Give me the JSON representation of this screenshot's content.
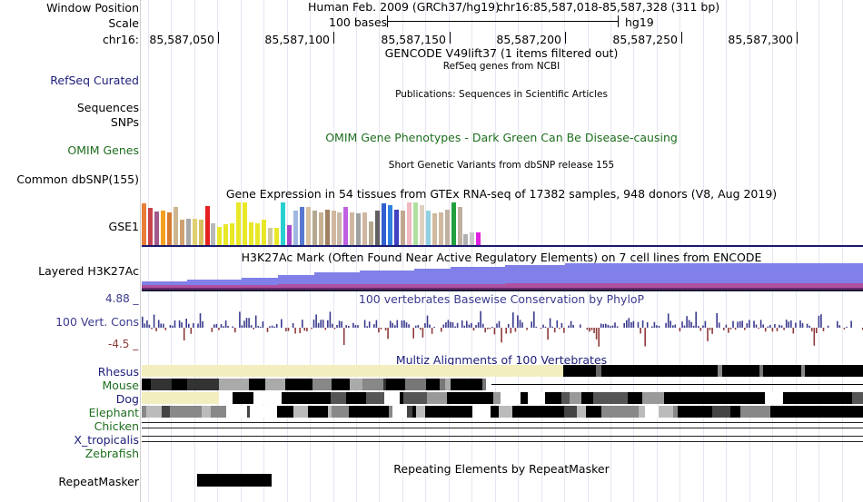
{
  "header": {
    "window_position_label": "Window Position",
    "assembly": "Human Feb. 2009 (GRCh37/hg19)",
    "position": "chr16:85,587,018-85,587,328 (311 bp)",
    "scale_label": "Scale",
    "scale_bar_text": "100 bases",
    "scale_assembly": "hg19",
    "chrom_label": "chr16:",
    "ruler_ticks": [
      "85,587,050",
      "85,587,100",
      "85,587,150",
      "85,587,200",
      "85,587,250",
      "85,587,300"
    ]
  },
  "tracks": {
    "gencode": {
      "title": "GENCODE V49lift37 (1 items filtered out)"
    },
    "refseq": {
      "label": "RefSeq Curated",
      "title": "RefSeq genes from NCBI",
      "color": "#1c1c7a"
    },
    "sequences": {
      "label": "Sequences",
      "title": "Publications: Sequences in Scientific Articles"
    },
    "omim": {
      "label_snps": "SNPs",
      "label": "OMIM Genes",
      "title": "OMIM Gene Phenotypes - Dark Green Can Be Disease-causing",
      "color": "#1e6e1e"
    },
    "dbsnp": {
      "label": "Common dbSNP(155)",
      "title": "Short Genetic Variants from dbSNP release 155"
    },
    "gtex": {
      "label": "GSE1",
      "title": "Gene Expression in 54 tissues from GTEx RNA-seq of 17382 samples, 948 donors (V8, Aug 2019)",
      "bar_colors": [
        "#e87e3a",
        "#c8434c",
        "#a05a8c",
        "#f4a020",
        "#d67a2e",
        "#ccb590",
        "#cfa070",
        "#a8a8a8",
        "#e0d070",
        "#d6c060",
        "#e62020",
        "#b8b8b8",
        "#e8e828",
        "#e8e828",
        "#e8e828",
        "#e8e828",
        "#e8e828",
        "#e8e828",
        "#e8e828",
        "#e8e828",
        "#d0c8a0",
        "#e8e828",
        "#28d0d0",
        "#a848c8",
        "#a0b8e0",
        "#5878d0",
        "#d8c0a0",
        "#b4a890",
        "#c8b090",
        "#a08060",
        "#d0b8a0",
        "#c8b8a8",
        "#c060e0",
        "#d0b8a0",
        "#a0a0a0",
        "#d0b8a0",
        "#b4a890",
        "#606060",
        "#3060d0",
        "#3080e0",
        "#4040c0",
        "#c0a890",
        "#f0b8c0",
        "#b0e0a0",
        "#e0d0c0",
        "#90d0e0",
        "#d0b8a0",
        "#d0b8a0",
        "#c0b0a0",
        "#20a040",
        "#c0b0a0",
        "#b0b0b0",
        "#c8c8c8",
        "#e020e0"
      ],
      "bar_values": [
        0.95,
        0.85,
        0.78,
        0.8,
        0.75,
        0.88,
        0.58,
        0.6,
        0.6,
        0.58,
        0.9,
        0.5,
        0.42,
        0.48,
        0.5,
        0.98,
        0.98,
        0.52,
        0.5,
        0.58,
        0.4,
        0.4,
        0.98,
        0.45,
        0.8,
        0.88,
        0.88,
        0.8,
        0.74,
        0.82,
        0.8,
        0.74,
        0.88,
        0.75,
        0.72,
        0.74,
        0.55,
        0.8,
        0.95,
        0.92,
        0.82,
        0.8,
        0.98,
        0.98,
        0.92,
        0.8,
        0.72,
        0.76,
        0.82,
        0.98,
        0.88,
        0.25,
        0.3,
        0.3
      ]
    },
    "h3k27ac": {
      "label": "Layered H3K27Ac",
      "title": "H3K27Ac Mark (Often Found Near Active Regulatory Elements) on 7 cell lines from ENCODE"
    },
    "phylop": {
      "label": "100 Vert. Cons",
      "max_label": "4.88 _",
      "min_label": "-4.5 _",
      "title": "100 vertebrates Basewise Conservation by PhyloP",
      "color_pos": "#3a3a8e",
      "color_neg": "#8e3a3a"
    },
    "multiz": {
      "title": "Multiz Alignments of 100 Vertebrates",
      "species": [
        "Rhesus",
        "Mouse",
        "Dog",
        "Elephant",
        "Chicken",
        "X_tropicalis",
        "Zebrafish"
      ],
      "species_color": "#1c1c7a",
      "species_color_green": "#1e6e1e"
    },
    "repeatmasker": {
      "label": "RepeatMasker",
      "title": "Repeating Elements by RepeatMasker"
    }
  }
}
